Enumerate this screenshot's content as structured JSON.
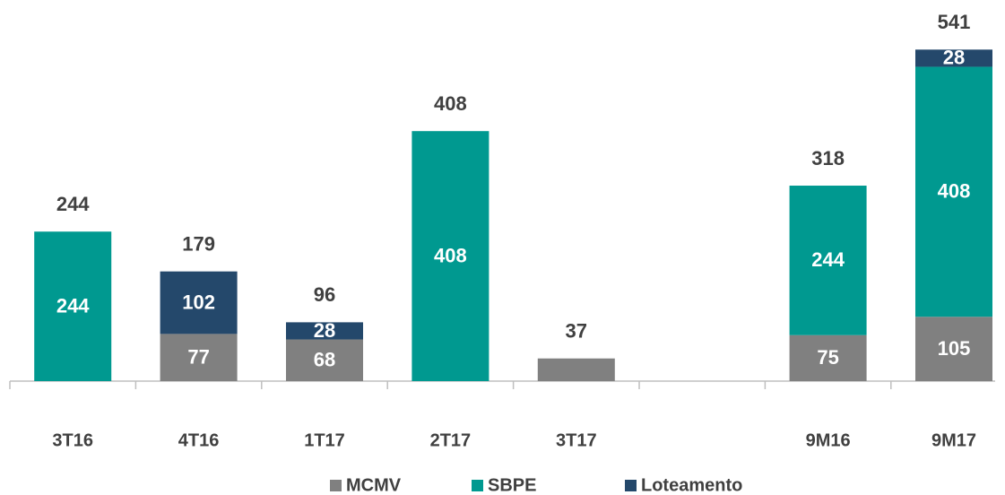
{
  "chart_data": {
    "type": "stacked_bar",
    "categories": [
      "3T16",
      "4T16",
      "1T17",
      "2T17",
      "3T17",
      null,
      "9M16",
      "9M17"
    ],
    "series": [
      {
        "name": "MCMV",
        "color": "#808080",
        "values": [
          null,
          77,
          68,
          null,
          37,
          null,
          75,
          105
        ],
        "value_labels": [
          null,
          "77",
          "68",
          null,
          null,
          null,
          "75",
          "105"
        ]
      },
      {
        "name": "SBPE",
        "color": "#009990",
        "values": [
          244,
          null,
          null,
          408,
          null,
          null,
          244,
          408
        ],
        "value_labels": [
          "244",
          null,
          null,
          "408",
          null,
          null,
          "244",
          "408"
        ]
      },
      {
        "name": "Loteamento",
        "color": "#24486b",
        "values": [
          null,
          102,
          28,
          null,
          null,
          null,
          null,
          28
        ],
        "value_labels": [
          null,
          "102",
          "28",
          null,
          null,
          null,
          null,
          "28"
        ]
      }
    ],
    "totals": [
      244,
      179,
      96,
      408,
      37,
      null,
      318,
      541
    ],
    "ylim": [
      0,
      600
    ]
  }
}
